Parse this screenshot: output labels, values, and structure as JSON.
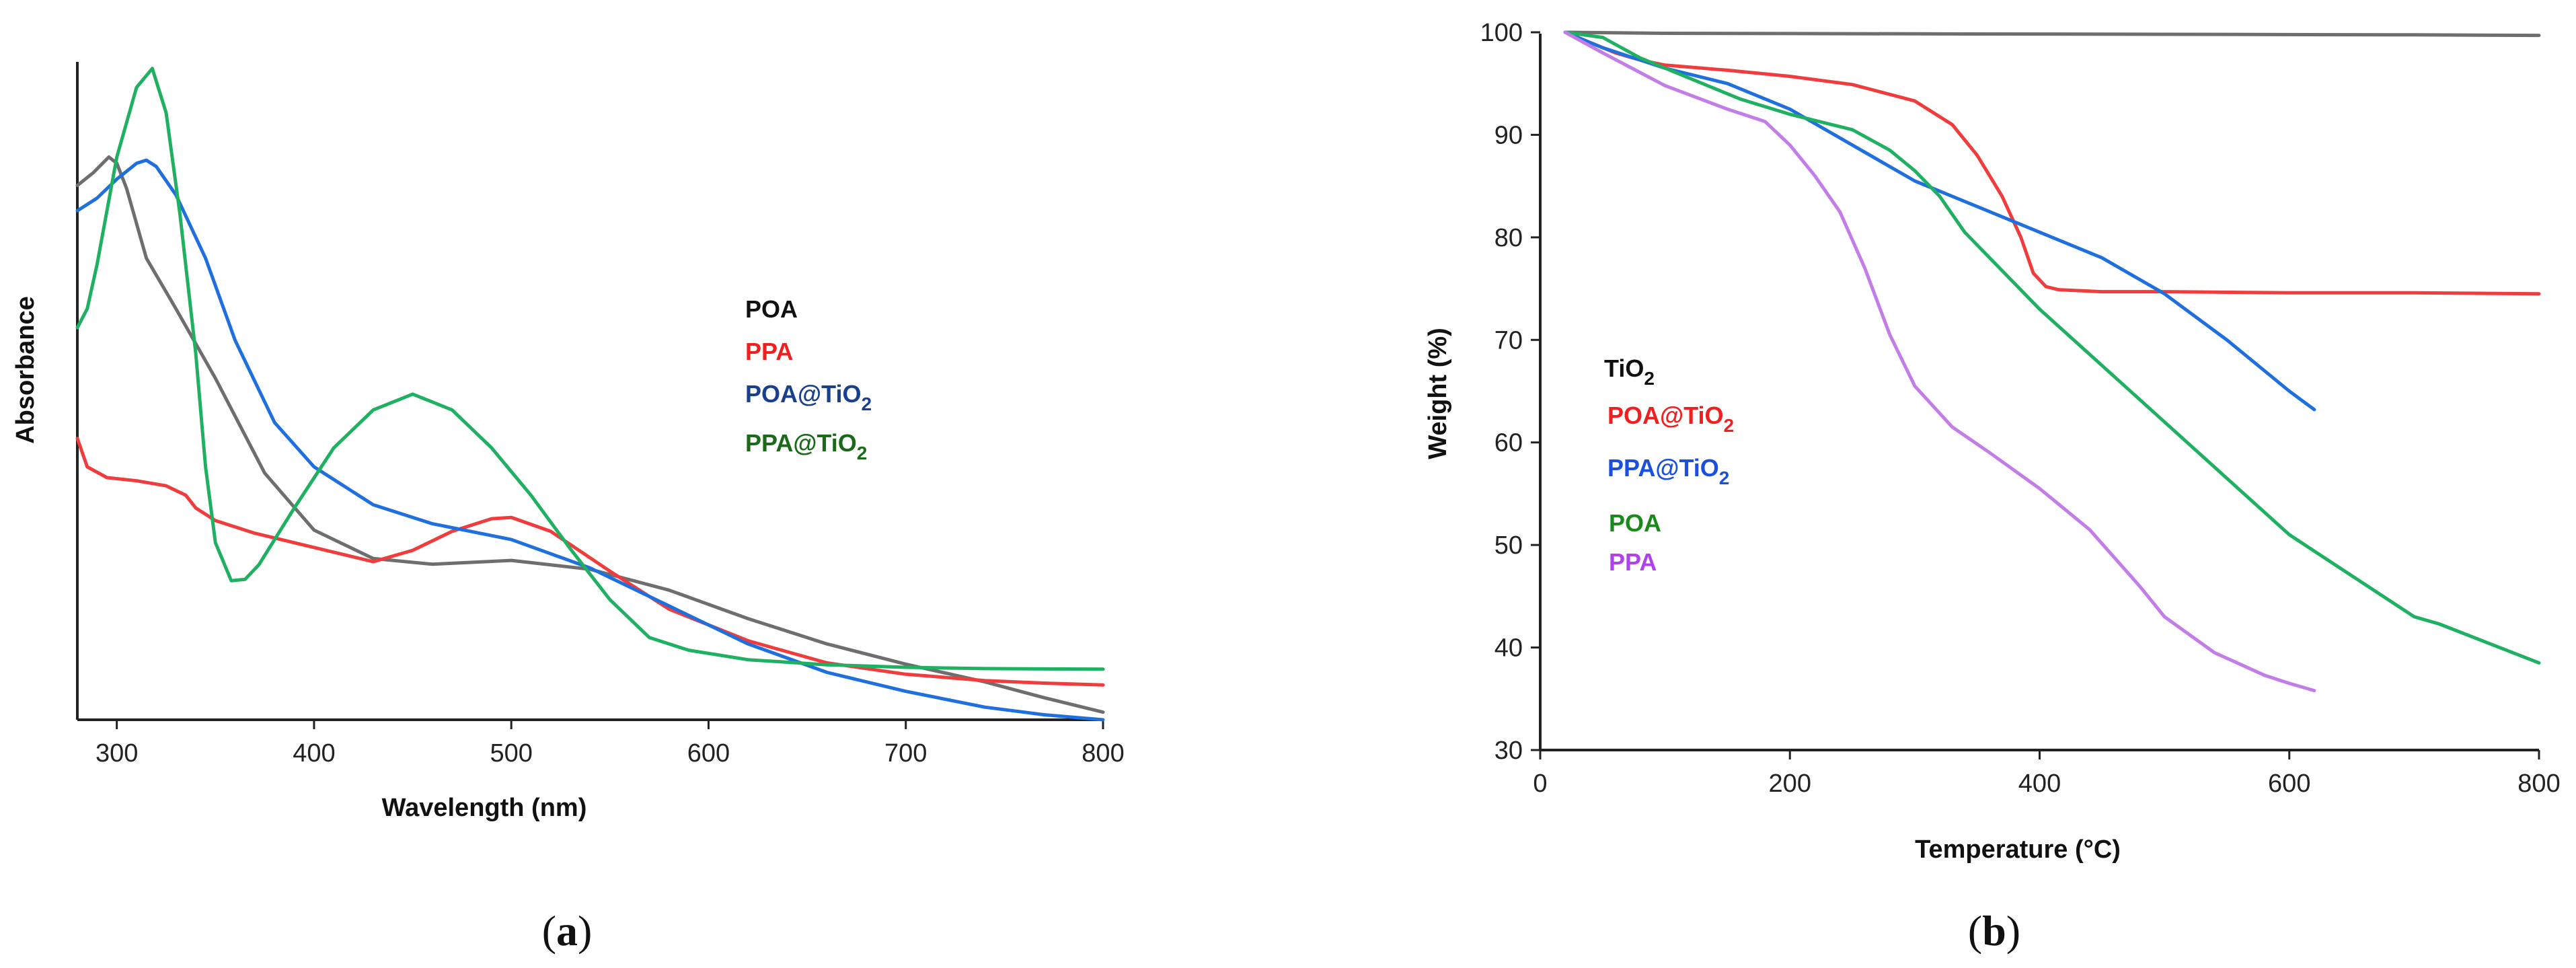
{
  "colors": {
    "poa_uv": "#6e6e6e",
    "ppa_uv": "#f03c3c",
    "poa_tio2_uv": "#1f6fde",
    "ppa_tio2_uv": "#1fb062",
    "legend_poa_uv": "#111111",
    "legend_ppa_uv": "#f02020",
    "legend_poa_tio2_uv": "#1a3f8c",
    "legend_ppa_tio2_uv": "#1a6a1a",
    "tga_tio2": "#6e6e6e",
    "tga_poa_tio2": "#f03c3c",
    "tga_ppa_tio2": "#1f6fde",
    "tga_poa": "#1fb062",
    "tga_ppa": "#c27ee6",
    "legend_tga_tio2": "#111111",
    "legend_tga_poa_tio2": "#f02020",
    "legend_tga_ppa_tio2": "#1a4fe0",
    "legend_tga_poa": "#1a8a1a",
    "legend_tga_ppa": "#b040f0"
  },
  "chart_data": [
    {
      "type": "line",
      "panel_label": "(a)",
      "caption_paren_open": "(",
      "caption_letter": "a",
      "caption_paren_close": ")",
      "xlabel": "Wavelength (nm)",
      "ylabel": "Absorbance",
      "xlim": [
        280,
        800
      ],
      "ylim": [
        0,
        1
      ],
      "y_ticks_shown": false,
      "x_ticks": [
        300,
        400,
        500,
        600,
        700,
        800
      ],
      "legend": [
        {
          "label": "POA",
          "sub": "",
          "color_key": "legend_poa_uv"
        },
        {
          "label": "PPA",
          "sub": "",
          "color_key": "legend_ppa_uv"
        },
        {
          "label": "POA@TiO",
          "sub": "2",
          "color_key": "legend_poa_tio2_uv"
        },
        {
          "label": "PPA@TiO",
          "sub": "2",
          "color_key": "legend_ppa_tio2_uv"
        }
      ],
      "series": [
        {
          "name": "POA",
          "color_key": "poa_uv",
          "x": [
            280,
            288,
            296,
            300,
            305,
            315,
            330,
            350,
            375,
            400,
            430,
            460,
            500,
            540,
            580,
            620,
            660,
            700,
            740,
            770,
            800
          ],
          "y": [
            0.845,
            0.865,
            0.89,
            0.88,
            0.84,
            0.73,
            0.65,
            0.54,
            0.39,
            0.3,
            0.255,
            0.246,
            0.252,
            0.238,
            0.205,
            0.16,
            0.12,
            0.088,
            0.06,
            0.035,
            0.012
          ]
        },
        {
          "name": "PPA",
          "color_key": "ppa_uv",
          "x": [
            280,
            285,
            295,
            310,
            325,
            335,
            340,
            350,
            370,
            390,
            410,
            430,
            450,
            470,
            490,
            500,
            520,
            550,
            580,
            620,
            660,
            700,
            740,
            770,
            800
          ],
          "y": [
            0.445,
            0.4,
            0.383,
            0.378,
            0.37,
            0.355,
            0.335,
            0.315,
            0.295,
            0.28,
            0.265,
            0.25,
            0.268,
            0.298,
            0.318,
            0.32,
            0.298,
            0.235,
            0.175,
            0.125,
            0.09,
            0.072,
            0.062,
            0.058,
            0.055
          ]
        },
        {
          "name": "POA@TiO2",
          "color_key": "poa_tio2_uv",
          "x": [
            280,
            290,
            300,
            310,
            315,
            320,
            330,
            345,
            360,
            380,
            400,
            430,
            460,
            500,
            540,
            580,
            620,
            660,
            700,
            740,
            770,
            800
          ],
          "y": [
            0.805,
            0.825,
            0.855,
            0.88,
            0.885,
            0.875,
            0.83,
            0.73,
            0.6,
            0.47,
            0.4,
            0.34,
            0.31,
            0.285,
            0.24,
            0.18,
            0.12,
            0.075,
            0.045,
            0.02,
            0.008,
            0.0
          ]
        },
        {
          "name": "PPA@TiO2",
          "color_key": "ppa_tio2_uv",
          "x": [
            280,
            285,
            290,
            300,
            310,
            318,
            325,
            332,
            340,
            345,
            350,
            358,
            365,
            372,
            390,
            410,
            430,
            450,
            470,
            490,
            510,
            530,
            550,
            570,
            590,
            620,
            660,
            700,
            740,
            800
          ],
          "y": [
            0.62,
            0.65,
            0.72,
            0.89,
            1.0,
            1.03,
            0.96,
            0.8,
            0.58,
            0.4,
            0.28,
            0.22,
            0.222,
            0.245,
            0.335,
            0.43,
            0.49,
            0.515,
            0.49,
            0.43,
            0.355,
            0.27,
            0.19,
            0.13,
            0.11,
            0.095,
            0.087,
            0.083,
            0.081,
            0.08
          ]
        }
      ]
    },
    {
      "type": "line",
      "panel_label": "(b)",
      "caption_paren_open": "(",
      "caption_letter": "b",
      "caption_paren_close": ")",
      "xlabel": "Temperature (°C)",
      "ylabel": "Weight (%)",
      "xlim": [
        0,
        800
      ],
      "ylim": [
        30,
        100
      ],
      "x_ticks": [
        0,
        200,
        400,
        600,
        800
      ],
      "y_ticks": [
        30,
        40,
        50,
        60,
        70,
        80,
        90,
        100
      ],
      "legend": [
        {
          "label": "TiO",
          "sub": "2",
          "color_key": "legend_tga_tio2"
        },
        {
          "label": "POA@TiO",
          "sub": "2",
          "color_key": "legend_tga_poa_tio2"
        },
        {
          "label": "PPA@TiO",
          "sub": "2",
          "color_key": "legend_tga_ppa_tio2"
        },
        {
          "label": "POA",
          "sub": "",
          "color_key": "legend_tga_poa"
        },
        {
          "label": "PPA",
          "sub": "",
          "color_key": "legend_tga_ppa"
        }
      ],
      "series": [
        {
          "name": "TiO2",
          "color_key": "tga_tio2",
          "x": [
            20,
            100,
            300,
            500,
            700,
            800
          ],
          "y": [
            100,
            99.9,
            99.85,
            99.8,
            99.75,
            99.7
          ]
        },
        {
          "name": "POA@TiO2",
          "color_key": "tga_poa_tio2",
          "x": [
            20,
            40,
            60,
            80,
            100,
            150,
            200,
            250,
            300,
            330,
            350,
            370,
            385,
            395,
            405,
            415,
            450,
            500,
            600,
            700,
            800
          ],
          "y": [
            100,
            99,
            98,
            97.3,
            96.8,
            96.3,
            95.7,
            94.9,
            93.3,
            91.0,
            88.0,
            84.0,
            80.0,
            76.5,
            75.2,
            74.9,
            74.7,
            74.7,
            74.6,
            74.6,
            74.5
          ]
        },
        {
          "name": "PPA@TiO2",
          "color_key": "tga_ppa_tio2",
          "x": [
            20,
            50,
            100,
            150,
            200,
            250,
            300,
            350,
            400,
            450,
            500,
            550,
            600,
            620
          ],
          "y": [
            100,
            98.5,
            96.5,
            95.0,
            92.5,
            89.0,
            85.5,
            83.0,
            80.5,
            78.0,
            74.5,
            70.0,
            65.0,
            63.2
          ]
        },
        {
          "name": "POA",
          "color_key": "tga_poa",
          "x": [
            20,
            50,
            80,
            120,
            160,
            200,
            250,
            280,
            300,
            320,
            340,
            400,
            500,
            600,
            700,
            720,
            800
          ],
          "y": [
            100,
            99.5,
            97.5,
            95.5,
            93.5,
            92.0,
            90.5,
            88.5,
            86.5,
            84.0,
            80.5,
            73.0,
            62.0,
            51.0,
            43.0,
            42.3,
            38.5
          ]
        },
        {
          "name": "PPA",
          "color_key": "tga_ppa",
          "x": [
            20,
            50,
            100,
            150,
            180,
            200,
            220,
            240,
            260,
            280,
            300,
            330,
            360,
            400,
            440,
            480,
            500,
            540,
            580,
            600,
            620
          ],
          "y": [
            100,
            98.0,
            94.8,
            92.5,
            91.3,
            89.0,
            86.0,
            82.5,
            77.0,
            70.5,
            65.5,
            61.5,
            59.0,
            55.5,
            51.5,
            46.0,
            43.0,
            39.5,
            37.3,
            36.5,
            35.8
          ]
        }
      ]
    }
  ]
}
